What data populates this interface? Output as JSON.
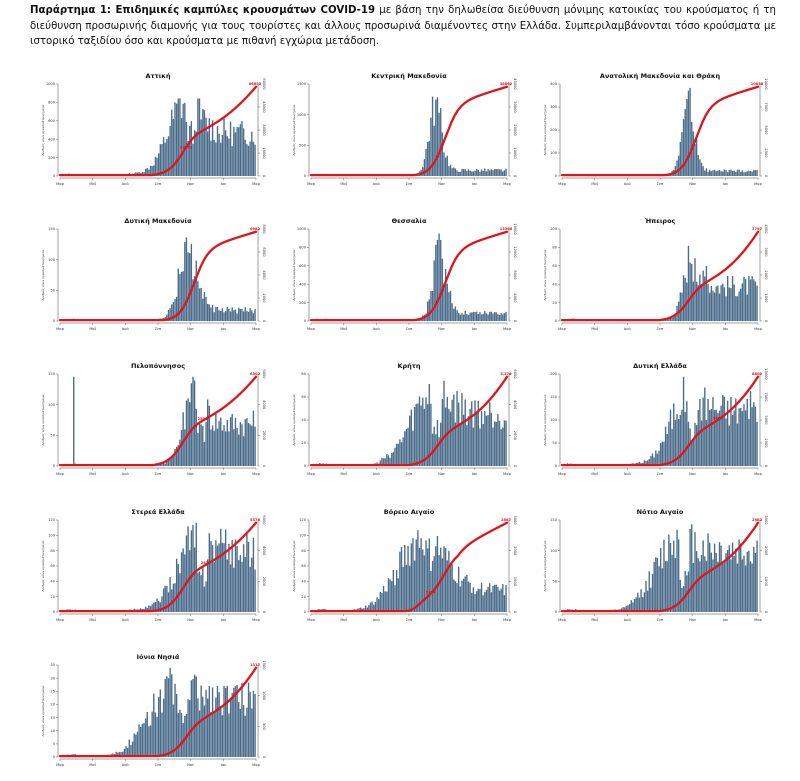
{
  "caption": {
    "bold": "Παράρτημα 1: Επιδημικές καμπύλες κρουσμάτων COVID-19",
    "text": " με βάση την δηλωθείσα διεύθυνση μόνιμης κατοικίας του κρούσματος ή τη διεύθυνση προσωρινής διαμονής για τους τουρίστες και άλλους προσωρινά διαμένοντες στην Ελλάδα. Συμπεριλαμβάνονται τόσο κρούσματα με ιστορικό ταξιδίου όσο και κρούσματα με πιθανή εγχώρια μετάδοση."
  },
  "colors": {
    "bars": "#4b6d8c",
    "line": "#e0141a",
    "axis": "#444444"
  },
  "y_axis_label": "Αριθμός νέων κρουσμάτων/ημέρα",
  "x_ticks": [
    "Μαρ",
    "Μαΐ",
    "Ιουλ",
    "Σεπ",
    "Νοε",
    "Ιαν",
    "Μαρ"
  ],
  "chart_data": [
    {
      "type": "bar",
      "title": "Αττική",
      "ylim": [
        0,
        1000
      ],
      "yticks": [
        0,
        200,
        400,
        600,
        800,
        1000
      ],
      "y2lim": [
        0,
        60000
      ],
      "y2ticks": [
        0,
        15000,
        30000,
        45000,
        60000
      ],
      "final_label": "66653",
      "mid_label": "33763",
      "mid_at": 0.63,
      "shape": {
        "peak": 0.64,
        "w1": 0.12,
        "baseline": 0.03,
        "tail": 0.6
      },
      "line_curve": "attica",
      "spike": 0
    },
    {
      "type": "bar",
      "title": "Κεντρική Μακεδονία",
      "ylim": [
        0,
        1500
      ],
      "yticks": [
        0,
        500,
        1000,
        1500
      ],
      "y2lim": [
        0,
        40000
      ],
      "y2ticks": [
        0,
        10000,
        20000,
        30000,
        40000
      ],
      "final_label": "38862",
      "mid_label": "",
      "mid_at": 0.65,
      "shape": {
        "peak": 0.64,
        "w1": 0.05,
        "baseline": 0.01,
        "tail": 0.08
      },
      "line_curve": "north",
      "spike": 0
    },
    {
      "type": "bar",
      "title": "Ανατολική Μακεδονία και Θράκη",
      "ylim": [
        0,
        400
      ],
      "yticks": [
        0,
        100,
        200,
        300,
        400
      ],
      "y2lim": [
        0,
        10000
      ],
      "y2ticks": [
        0,
        2500,
        5000,
        7500,
        10000
      ],
      "final_label": "10838",
      "mid_label": "",
      "mid_at": 0.65,
      "shape": {
        "peak": 0.65,
        "w1": 0.05,
        "baseline": 0.01,
        "tail": 0.07
      },
      "line_curve": "north",
      "spike": 0
    },
    {
      "type": "bar",
      "title": "Δυτική Μακεδονία",
      "ylim": [
        0,
        150
      ],
      "yticks": [
        0,
        50,
        100,
        150
      ],
      "y2lim": [
        0,
        8000
      ],
      "y2ticks": [
        0,
        2000,
        4000,
        6000,
        8000
      ],
      "final_label": "6982",
      "mid_label": "",
      "mid_at": 0.65,
      "shape": {
        "peak": 0.66,
        "w1": 0.07,
        "baseline": 0.02,
        "tail": 0.15
      },
      "line_curve": "north",
      "spike": 0
    },
    {
      "type": "bar",
      "title": "Θεσσαλία",
      "ylim": [
        0,
        1000
      ],
      "yticks": [
        0,
        200,
        400,
        600,
        800,
        1000
      ],
      "y2lim": [
        0,
        16000
      ],
      "y2ticks": [
        0,
        4000,
        8000,
        12000,
        16000
      ],
      "final_label": "15365",
      "mid_label": "",
      "mid_at": 0.65,
      "shape": {
        "peak": 0.66,
        "w1": 0.05,
        "baseline": 0.02,
        "tail": 0.12
      },
      "line_curve": "north",
      "spike": 0
    },
    {
      "type": "bar",
      "title": "Ήπειρος",
      "ylim": [
        0,
        100
      ],
      "yticks": [
        0,
        20,
        40,
        60,
        80,
        100
      ],
      "y2lim": [
        0,
        4000
      ],
      "y2ticks": [
        0,
        1000,
        2000,
        3000,
        4000
      ],
      "final_label": "3797",
      "mid_label": "",
      "mid_at": 0.67,
      "shape": {
        "peak": 0.67,
        "w1": 0.06,
        "baseline": 0.02,
        "tail": 0.5
      },
      "line_curve": "double",
      "spike": 0
    },
    {
      "type": "bar",
      "title": "Πελοπόννησος",
      "ylim": [
        0,
        150
      ],
      "yticks": [
        0,
        50,
        100,
        150
      ],
      "y2lim": [
        0,
        6000
      ],
      "y2ticks": [
        0,
        2000,
        4000,
        6000
      ],
      "final_label": "6302",
      "mid_label": "2334",
      "mid_at": 0.72,
      "shape": {
        "peak": 0.69,
        "w1": 0.08,
        "baseline": 0.02,
        "tail": 0.6
      },
      "line_curve": "attica",
      "spike": 150
    },
    {
      "type": "bar",
      "title": "Κρήτη",
      "ylim": [
        0,
        80
      ],
      "yticks": [
        0,
        20,
        40,
        60,
        80
      ],
      "y2lim": [
        0,
        6000
      ],
      "y2ticks": [
        0,
        2000,
        4000,
        6000
      ],
      "final_label": "5,376",
      "mid_label": "",
      "mid_at": 0.65,
      "shape": {
        "peak": 0.62,
        "w1": 0.15,
        "baseline": 0.04,
        "tail": 0.75
      },
      "line_curve": "double",
      "spike": 0
    },
    {
      "type": "bar",
      "title": "Δυτική Ελλάδα",
      "ylim": [
        0,
        200
      ],
      "yticks": [
        0,
        50,
        100,
        150,
        200
      ],
      "y2lim": [
        0,
        10000
      ],
      "y2ticks": [
        0,
        2500,
        5000,
        7500,
        10000
      ],
      "final_label": "8800",
      "mid_label": "5613",
      "mid_at": 0.78,
      "shape": {
        "peak": 0.64,
        "w1": 0.12,
        "baseline": 0.03,
        "tail": 0.8
      },
      "line_curve": "double",
      "spike": 0
    },
    {
      "type": "bar",
      "title": "Στερεά Ελλάδα",
      "ylim": [
        0,
        120
      ],
      "yticks": [
        0,
        20,
        40,
        60,
        80,
        100,
        120
      ],
      "y2lim": [
        0,
        6000
      ],
      "y2ticks": [
        0,
        2000,
        4000,
        6000
      ],
      "final_label": "5376",
      "mid_label": "2617",
      "mid_at": 0.74,
      "shape": {
        "peak": 0.7,
        "w1": 0.14,
        "baseline": 0.03,
        "tail": 0.85
      },
      "line_curve": "attica",
      "spike": 0
    },
    {
      "type": "bar",
      "title": "Βόρειο Αιγαίο",
      "ylim": [
        0,
        120
      ],
      "yticks": [
        0,
        20,
        40,
        60,
        80,
        100,
        120
      ],
      "y2lim": [
        0,
        3000
      ],
      "y2ticks": [
        0,
        1000,
        2000,
        3000
      ],
      "final_label": "2867",
      "mid_label": "1274",
      "mid_at": 0.6,
      "shape": {
        "peak": 0.58,
        "w1": 0.18,
        "baseline": 0.05,
        "tail": 0.3
      },
      "line_curve": "aegean",
      "spike": 0
    },
    {
      "type": "bar",
      "title": "Νότιο Αιγαίο",
      "ylim": [
        0,
        150
      ],
      "yticks": [
        0,
        50,
        100,
        150
      ],
      "y2lim": [
        0,
        3000
      ],
      "y2ticks": [
        0,
        1000,
        2000,
        3000
      ],
      "final_label": "2682",
      "mid_label": "",
      "mid_at": 0.6,
      "shape": {
        "peak": 0.6,
        "w1": 0.16,
        "baseline": 0.05,
        "tail": 0.85
      },
      "line_curve": "double",
      "spike": 0
    },
    {
      "type": "bar",
      "title": "Ιόνια Νησιά",
      "ylim": [
        0,
        35
      ],
      "yticks": [
        0,
        5,
        10,
        15,
        20,
        25,
        30,
        35
      ],
      "y2lim": [
        0,
        1500
      ],
      "y2ticks": [
        0,
        500,
        1000,
        1500
      ],
      "final_label": "1317",
      "mid_label": "",
      "mid_at": 0.6,
      "shape": {
        "peak": 0.6,
        "w1": 0.18,
        "baseline": 0.05,
        "tail": 0.8
      },
      "line_curve": "double",
      "spike": 0
    }
  ]
}
